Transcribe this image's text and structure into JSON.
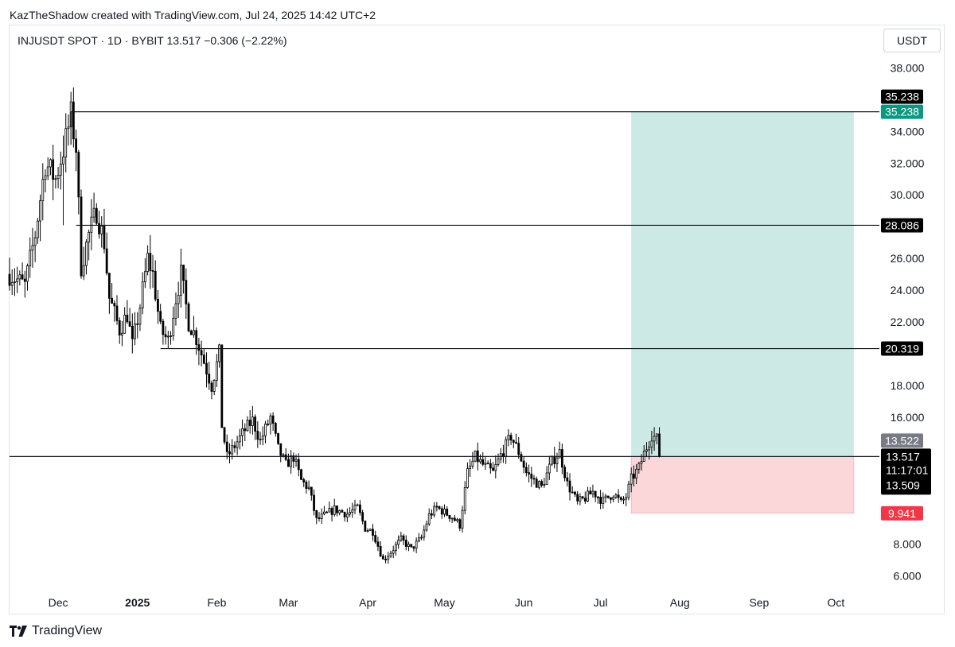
{
  "header": {
    "credit": "KazTheShadow created with TradingView.com, Jul 24, 2025 14:42 UTC+2",
    "symbol_line": "INJUSDT SPOT · 1D · BYBIT  13.517  −0.306 (−2.22%)",
    "currency": "USDT"
  },
  "footer": {
    "brand": "TradingView",
    "brand_icon": "tradingview-logo-icon"
  },
  "colors": {
    "up_candle": "#ffffff",
    "down_candle": "#000000",
    "wick": "#000000",
    "target_zone": "#cce9e5",
    "stop_zone": "#fbd7da",
    "target_label": "#089981",
    "stop_label": "#f23645",
    "price_label": "#000000",
    "prev_close_label": "#787b86"
  },
  "chart_data": {
    "type": "candlestick",
    "title": "INJUSDT SPOT · 1D · BYBIT",
    "ylim": [
      5.5,
      40.0
    ],
    "y_scale": "linear",
    "y_ticks": [
      "38.000",
      "34.000",
      "32.000",
      "30.000",
      "26.000",
      "24.000",
      "22.000",
      "18.000",
      "16.000",
      "8.000",
      "6.000"
    ],
    "x_ticks": [
      {
        "label": "Dec",
        "date": "2024-12-01"
      },
      {
        "label": "2025",
        "date": "2025-01-01"
      },
      {
        "label": "Feb",
        "date": "2025-02-01"
      },
      {
        "label": "Mar",
        "date": "2025-03-01"
      },
      {
        "label": "Apr",
        "date": "2025-04-01"
      },
      {
        "label": "May",
        "date": "2025-05-01"
      },
      {
        "label": "Jun",
        "date": "2025-06-01"
      },
      {
        "label": "Jul",
        "date": "2025-07-01"
      },
      {
        "label": "Aug",
        "date": "2025-08-01"
      },
      {
        "label": "Sep",
        "date": "2025-09-01"
      },
      {
        "label": "Oct",
        "date": "2025-10-01"
      }
    ],
    "x_range": [
      "2024-11-12",
      "2025-10-18"
    ],
    "price_path": [
      [
        "2024-11-12",
        25.0
      ],
      [
        "2024-11-18",
        24.3
      ],
      [
        "2024-11-22",
        27.5
      ],
      [
        "2024-11-26",
        32.0
      ],
      [
        "2024-11-30",
        31.0
      ],
      [
        "2024-12-04",
        33.5
      ],
      [
        "2024-12-06",
        35.0
      ],
      [
        "2024-12-08",
        33.0
      ],
      [
        "2024-12-10",
        25.5
      ],
      [
        "2024-12-13",
        27.5
      ],
      [
        "2024-12-16",
        29.0
      ],
      [
        "2024-12-19",
        27.0
      ],
      [
        "2024-12-21",
        23.5
      ],
      [
        "2024-12-25",
        21.5
      ],
      [
        "2024-12-28",
        22.5
      ],
      [
        "2024-12-30",
        20.5
      ],
      [
        "2025-01-02",
        23.0
      ],
      [
        "2025-01-05",
        26.0
      ],
      [
        "2025-01-07",
        25.0
      ],
      [
        "2025-01-10",
        21.5
      ],
      [
        "2025-01-13",
        20.8
      ],
      [
        "2025-01-16",
        23.5
      ],
      [
        "2025-01-18",
        25.0
      ],
      [
        "2025-01-21",
        22.0
      ],
      [
        "2025-01-24",
        21.0
      ],
      [
        "2025-01-27",
        19.5
      ],
      [
        "2025-01-30",
        18.0
      ],
      [
        "2025-02-02",
        20.0
      ],
      [
        "2025-02-03",
        15.5
      ],
      [
        "2025-02-05",
        13.5
      ],
      [
        "2025-02-08",
        14.2
      ],
      [
        "2025-02-12",
        15.2
      ],
      [
        "2025-02-15",
        15.8
      ],
      [
        "2025-02-18",
        14.5
      ],
      [
        "2025-02-22",
        16.0
      ],
      [
        "2025-02-25",
        14.0
      ],
      [
        "2025-02-28",
        13.0
      ],
      [
        "2025-03-03",
        13.5
      ],
      [
        "2025-03-06",
        12.0
      ],
      [
        "2025-03-09",
        11.5
      ],
      [
        "2025-03-12",
        9.5
      ],
      [
        "2025-03-15",
        9.8
      ],
      [
        "2025-03-19",
        10.2
      ],
      [
        "2025-03-24",
        9.9
      ],
      [
        "2025-03-28",
        10.3
      ],
      [
        "2025-03-31",
        9.0
      ],
      [
        "2025-04-03",
        8.8
      ],
      [
        "2025-04-07",
        7.0
      ],
      [
        "2025-04-10",
        7.5
      ],
      [
        "2025-04-14",
        8.3
      ],
      [
        "2025-04-18",
        7.7
      ],
      [
        "2025-04-22",
        8.4
      ],
      [
        "2025-04-25",
        9.8
      ],
      [
        "2025-04-28",
        10.3
      ],
      [
        "2025-05-01",
        10.0
      ],
      [
        "2025-05-04",
        9.7
      ],
      [
        "2025-05-07",
        9.2
      ],
      [
        "2025-05-10",
        12.5
      ],
      [
        "2025-05-13",
        13.5
      ],
      [
        "2025-05-16",
        13.0
      ],
      [
        "2025-05-20",
        12.5
      ],
      [
        "2025-05-23",
        13.6
      ],
      [
        "2025-05-27",
        14.8
      ],
      [
        "2025-05-30",
        13.8
      ],
      [
        "2025-06-02",
        12.5
      ],
      [
        "2025-06-05",
        12.0
      ],
      [
        "2025-06-08",
        11.6
      ],
      [
        "2025-06-12",
        13.2
      ],
      [
        "2025-06-15",
        13.8
      ],
      [
        "2025-06-18",
        11.8
      ],
      [
        "2025-06-22",
        10.6
      ],
      [
        "2025-06-25",
        10.9
      ],
      [
        "2025-06-28",
        11.3
      ],
      [
        "2025-07-02",
        10.7
      ],
      [
        "2025-07-06",
        11.2
      ],
      [
        "2025-07-09",
        10.6
      ],
      [
        "2025-07-11",
        11.0
      ],
      [
        "2025-07-13",
        12.1
      ],
      [
        "2025-07-16",
        12.8
      ],
      [
        "2025-07-18",
        13.7
      ],
      [
        "2025-07-21",
        14.9
      ],
      [
        "2025-07-23",
        14.6
      ],
      [
        "2025-07-24",
        13.5
      ]
    ],
    "levels": [
      {
        "name": "resistance-level-35238",
        "value": 35.238,
        "start": "2024-12-06",
        "label": "35.238"
      },
      {
        "name": "resistance-level-28086",
        "value": 28.086,
        "start": "2024-12-08",
        "label": "28.086"
      },
      {
        "name": "resistance-level-20319",
        "value": 20.319,
        "start": "2025-01-10",
        "label": "20.319"
      },
      {
        "name": "entry-level-13517",
        "value": 13.517,
        "start": "2024-11-12",
        "label": "13.517"
      }
    ],
    "position": {
      "start": "2025-07-13",
      "end": "2025-10-08",
      "entry": 13.517,
      "target": 35.238,
      "stop": 9.941,
      "target_label": "35.238",
      "stop_label": "9.941"
    },
    "price_labels": {
      "level_top": "35.238",
      "prev_close": "13.522",
      "last": "13.517",
      "countdown": "11:17:01",
      "bid": "13.509"
    }
  }
}
